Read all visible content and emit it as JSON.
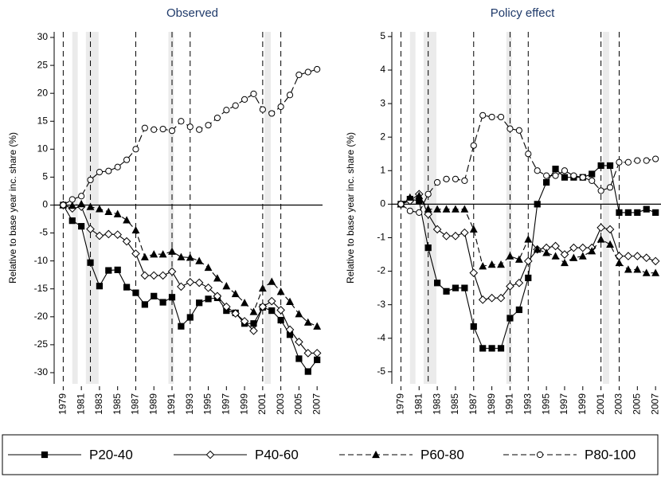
{
  "chart_data": [
    {
      "type": "line",
      "title": "Observed",
      "ylabel": "Relative to base year inc. share (%)",
      "x": [
        1979,
        1980,
        1981,
        1982,
        1983,
        1984,
        1985,
        1986,
        1987,
        1988,
        1989,
        1990,
        1991,
        1992,
        1993,
        1994,
        1995,
        1996,
        1997,
        1998,
        1999,
        2000,
        2001,
        2002,
        2003,
        2004,
        2005,
        2006,
        2007
      ],
      "xlim": [
        1978,
        2007.6
      ],
      "xticks": [
        1979,
        1981,
        1983,
        1985,
        1987,
        1989,
        1991,
        1993,
        1995,
        1997,
        1999,
        2001,
        2003,
        2005,
        2007
      ],
      "ylim": [
        -32,
        31
      ],
      "yticks": [
        -30,
        -25,
        -20,
        -15,
        -10,
        -5,
        0,
        5,
        10,
        15,
        20,
        25,
        30
      ],
      "vlines": [
        1979,
        1982,
        1987,
        1991,
        1993,
        2001,
        2003
      ],
      "shaded": [
        [
          1980,
          1980.6
        ],
        [
          1981.5,
          1982.9
        ],
        [
          1990.6,
          1991.2
        ],
        [
          2001.2,
          2001.9
        ]
      ],
      "series": [
        {
          "name": "P20-40",
          "color": "#000000",
          "marker": "square",
          "dashed": false,
          "values": [
            0,
            -2.8,
            -3.8,
            -10.3,
            -14.5,
            -11.7,
            -11.6,
            -14.7,
            -15.7,
            -17.8,
            -16.3,
            -17.4,
            -16.5,
            -21.7,
            -20.1,
            -17.5,
            -16.8,
            -16.6,
            -18.9,
            -19.3,
            -21.2,
            -21.2,
            -18.3,
            -18.9,
            -20.6,
            -23.2,
            -27.5,
            -29.8,
            -27.7
          ]
        },
        {
          "name": "P40-60",
          "color": "#000000",
          "marker": "diamond",
          "dashed": false,
          "values": [
            0,
            -0.6,
            -0.3,
            -4.3,
            -5.5,
            -5.2,
            -5.3,
            -6.5,
            -8.7,
            -12.6,
            -12.6,
            -12.6,
            -11.9,
            -14.6,
            -13.8,
            -13.9,
            -14.8,
            -16.3,
            -18.2,
            -19.4,
            -20.8,
            -22.5,
            -18.2,
            -17.2,
            -18.8,
            -22.3,
            -24.5,
            -26.5,
            -26.5
          ]
        },
        {
          "name": "P60-80",
          "color": "#000000",
          "marker": "triangle",
          "dashed": true,
          "values": [
            0,
            -0.1,
            0.2,
            -0.3,
            -0.7,
            -1.2,
            -1.6,
            -2.7,
            -4.5,
            -9.3,
            -8.8,
            -8.8,
            -8.3,
            -9.3,
            -9.4,
            -10.0,
            -11.2,
            -13.1,
            -14.5,
            -15.9,
            -17.5,
            -19.1,
            -14.9,
            -13.7,
            -15.5,
            -17.3,
            -19.5,
            -21.0,
            -21.7
          ]
        },
        {
          "name": "P80-100",
          "color": "#000000",
          "marker": "circle",
          "dashed": true,
          "values": [
            0,
            1.0,
            1.6,
            4.5,
            5.9,
            6.1,
            6.8,
            8.1,
            10.0,
            13.8,
            13.5,
            13.6,
            13.3,
            15.0,
            14.0,
            13.5,
            14.3,
            15.6,
            17.0,
            17.8,
            18.9,
            19.9,
            17.1,
            16.4,
            17.6,
            19.7,
            23.3,
            23.8,
            24.3
          ]
        }
      ]
    },
    {
      "type": "line",
      "title": "Policy effect",
      "ylabel": "Relative to base year inc. share (%)",
      "x": [
        1979,
        1980,
        1981,
        1982,
        1983,
        1984,
        1985,
        1986,
        1987,
        1988,
        1989,
        1990,
        1991,
        1992,
        1993,
        1994,
        1995,
        1996,
        1997,
        1998,
        1999,
        2000,
        2001,
        2002,
        2003,
        2004,
        2005,
        2006,
        2007
      ],
      "xlim": [
        1978,
        2007.6
      ],
      "xticks": [
        1979,
        1981,
        1983,
        1985,
        1987,
        1989,
        1991,
        1993,
        1995,
        1997,
        1999,
        2001,
        2003,
        2005,
        2007
      ],
      "ylim": [
        -5.36,
        5.14
      ],
      "yticks": [
        -5,
        -4,
        -3,
        -2,
        -1,
        0,
        1,
        2,
        3,
        4,
        5
      ],
      "vlines": [
        1979,
        1982,
        1987,
        1991,
        1993,
        2001,
        2003
      ],
      "shaded": [
        [
          1980,
          1980.6
        ],
        [
          1981.5,
          1982.9
        ],
        [
          1990.6,
          1991.2
        ],
        [
          2001.2,
          2001.9
        ]
      ],
      "series": [
        {
          "color": "#000000",
          "marker": "square",
          "dashed": false,
          "values": [
            0,
            0.15,
            0.1,
            -1.3,
            -2.35,
            -2.6,
            -2.5,
            -2.5,
            -3.65,
            -4.3,
            -4.3,
            -4.3,
            -3.4,
            -3.15,
            -2.2,
            0,
            0.65,
            1.05,
            0.8,
            0.8,
            0.8,
            0.9,
            1.15,
            1.15,
            -0.25,
            -0.25,
            -0.25,
            -0.15,
            -0.25
          ]
        },
        {
          "color": "#000000",
          "marker": "diamond",
          "dashed": false,
          "values": [
            0,
            0.1,
            0.3,
            -0.3,
            -0.75,
            -0.95,
            -0.95,
            -0.85,
            -2.05,
            -2.85,
            -2.8,
            -2.8,
            -2.45,
            -2.35,
            -1.7,
            -1.35,
            -1.3,
            -1.25,
            -1.5,
            -1.3,
            -1.3,
            -1.3,
            -0.7,
            -0.75,
            -1.55,
            -1.55,
            -1.55,
            -1.6,
            -1.7
          ]
        },
        {
          "color": "#000000",
          "marker": "triangle",
          "dashed": true,
          "values": [
            0,
            0.2,
            0.25,
            -0.15,
            -0.15,
            -0.15,
            -0.15,
            -0.15,
            -0.75,
            -1.85,
            -1.8,
            -1.8,
            -1.55,
            -1.65,
            -1.05,
            -1.35,
            -1.45,
            -1.55,
            -1.75,
            -1.6,
            -1.55,
            -1.4,
            -1.05,
            -1.2,
            -1.75,
            -1.95,
            -1.95,
            -2.05,
            -2.05
          ]
        },
        {
          "color": "#000000",
          "marker": "circle",
          "dashed": true,
          "values": [
            0,
            -0.2,
            -0.25,
            0.3,
            0.65,
            0.75,
            0.75,
            0.7,
            1.75,
            2.65,
            2.6,
            2.6,
            2.25,
            2.2,
            1.5,
            1.0,
            0.85,
            0.85,
            1.0,
            0.85,
            0.8,
            0.7,
            0.4,
            0.5,
            1.25,
            1.25,
            1.3,
            1.3,
            1.35
          ]
        }
      ]
    }
  ]
}
